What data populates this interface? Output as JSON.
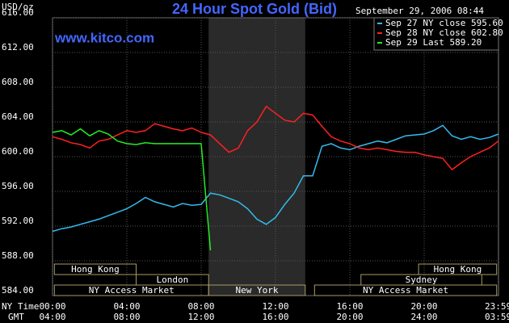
{
  "chart_data": {
    "type": "line",
    "title": "24 Hour Spot Gold (Bid)",
    "timestamp": "September 29, 2006 08:44",
    "y_label": "USD/oz",
    "watermark": "www.kitco.com",
    "x_row_labels": [
      "NY Time",
      "GMT"
    ],
    "x": [
      0,
      0.5,
      1,
      1.5,
      2,
      2.5,
      3,
      3.5,
      4,
      4.5,
      5,
      5.5,
      6,
      6.5,
      7,
      7.5,
      8,
      8.5,
      9,
      9.5,
      10,
      10.5,
      11,
      11.5,
      12,
      12.5,
      13,
      13.5,
      14,
      14.5,
      15,
      15.5,
      16,
      16.5,
      17,
      17.5,
      18,
      18.5,
      19,
      19.5,
      20,
      20.5,
      21,
      21.5,
      22,
      22.5,
      23,
      23.5,
      24
    ],
    "series": [
      {
        "name": "Sep 27 NY close 595.60",
        "color": "#33bbee",
        "values": [
          591.4,
          591.7,
          591.9,
          592.2,
          592.5,
          592.8,
          593.2,
          593.6,
          594.0,
          594.6,
          595.3,
          594.8,
          594.5,
          594.2,
          594.6,
          594.4,
          594.5,
          595.8,
          595.6,
          595.2,
          594.8,
          594.0,
          592.8,
          592.2,
          593.0,
          594.5,
          595.8,
          597.8,
          597.8,
          601.2,
          601.5,
          601.0,
          600.8,
          601.2,
          601.5,
          601.8,
          601.6,
          602.0,
          602.4,
          602.5,
          602.6,
          603.0,
          603.6,
          602.4,
          602.0,
          602.3,
          602.0,
          602.2,
          602.6
        ]
      },
      {
        "name": "Sep 28 NY close 602.80",
        "color": "#ff2020",
        "values": [
          602.3,
          602.0,
          601.6,
          601.4,
          601.0,
          601.8,
          602.0,
          602.5,
          603.0,
          602.8,
          603.0,
          603.8,
          603.5,
          603.2,
          603.0,
          603.3,
          602.8,
          602.5,
          601.5,
          600.5,
          601.0,
          603.0,
          604.0,
          605.8,
          605.0,
          604.2,
          604.0,
          605.0,
          604.8,
          603.5,
          602.3,
          601.8,
          601.5,
          601.0,
          600.8,
          601.0,
          600.8,
          600.6,
          600.5,
          600.5,
          600.2,
          600.0,
          599.8,
          598.5,
          599.3,
          600.0,
          600.5,
          601.0,
          601.8
        ]
      },
      {
        "name": "Sep 29 Last 589.20",
        "color": "#22ee22",
        "values": [
          602.8,
          603.0,
          602.5,
          603.2,
          602.4,
          603.0,
          602.6,
          601.8,
          601.5,
          601.4,
          601.6,
          601.5,
          601.5,
          601.5,
          601.5,
          601.5,
          601.5,
          589.2,
          null,
          null,
          null,
          null,
          null,
          null,
          null,
          null,
          null,
          null,
          null,
          null,
          null,
          null,
          null,
          null,
          null,
          null,
          null,
          null,
          null,
          null,
          null,
          null,
          null,
          null,
          null,
          null,
          null,
          null,
          null
        ]
      }
    ],
    "xlim": [
      0,
      24
    ],
    "ylim": [
      584,
      616
    ],
    "yticks": [
      {
        "value": 584,
        "label": "584.00"
      },
      {
        "value": 588,
        "label": "588.00"
      },
      {
        "value": 592,
        "label": "592.00"
      },
      {
        "value": 596,
        "label": "596.00"
      },
      {
        "value": 600,
        "label": "600.00"
      },
      {
        "value": 604,
        "label": "604.00"
      },
      {
        "value": 608,
        "label": "608.00"
      },
      {
        "value": 612,
        "label": "612.00"
      },
      {
        "value": 616,
        "label": "616.00"
      }
    ],
    "xticks": [
      {
        "value": 0,
        "label": "00:00"
      },
      {
        "value": 4,
        "label": "04:00"
      },
      {
        "value": 8,
        "label": "08:00"
      },
      {
        "value": 12,
        "label": "12:00"
      },
      {
        "value": 16,
        "label": "16:00"
      },
      {
        "value": 20,
        "label": "20:00"
      },
      {
        "value": 23.983,
        "label": "23:59"
      }
    ],
    "x2ticks": [
      {
        "value": 0,
        "label": "04:00"
      },
      {
        "value": 4,
        "label": "08:00"
      },
      {
        "value": 8,
        "label": "12:00"
      },
      {
        "value": 12,
        "label": "16:00"
      },
      {
        "value": 16,
        "label": "20:00"
      },
      {
        "value": 20,
        "label": "24:00"
      },
      {
        "value": 23.983,
        "label": "03:59"
      }
    ],
    "grid": true,
    "legend": "top-right",
    "sessions": [
      [
        {
          "label": "Hong Kong",
          "start": 0.1,
          "end": 4.5
        },
        {
          "label": "Hong Kong",
          "start": 19.7,
          "end": 23.9
        }
      ],
      [
        {
          "label": "London",
          "start": 4.5,
          "end": 8.4
        },
        {
          "label": "Sydney",
          "start": 16.6,
          "end": 23.1
        }
      ],
      [
        {
          "label": "NY Access Market",
          "start": 0.1,
          "end": 8.4
        },
        {
          "label": "New York",
          "start": 8.4,
          "end": 13.6
        },
        {
          "label": "NY Access Market",
          "start": 14.1,
          "end": 23.9
        }
      ]
    ]
  }
}
